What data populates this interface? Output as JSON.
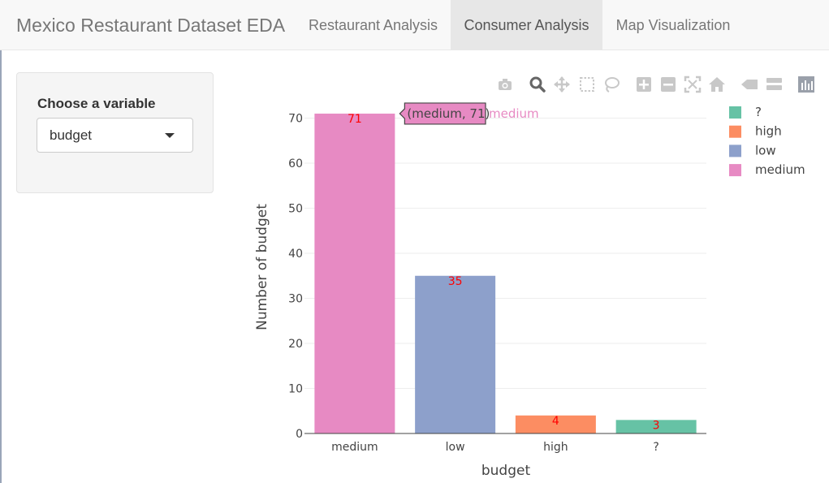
{
  "navbar": {
    "brand": "Mexico Restaurant Dataset EDA",
    "tabs": [
      {
        "label": "Restaurant Analysis",
        "active": false
      },
      {
        "label": "Consumer Analysis",
        "active": true
      },
      {
        "label": "Map Visualization",
        "active": false
      }
    ]
  },
  "sidebar": {
    "label": "Choose a variable",
    "select_value": "budget"
  },
  "modebar": {
    "icons": [
      "camera-icon",
      "zoom-icon",
      "pan-icon",
      "box-select-icon",
      "lasso-icon",
      "zoom-in-icon",
      "zoom-out-icon",
      "autoscale-icon",
      "reset-axes-icon",
      "spike-lines-icon",
      "compare-hover-icon",
      "plotly-logo-icon"
    ]
  },
  "chart_data": {
    "type": "bar",
    "categories": [
      "medium",
      "low",
      "high",
      "?"
    ],
    "values": [
      71,
      35,
      4,
      3
    ],
    "data_labels": [
      "71",
      "35",
      "4",
      "3"
    ],
    "colors": {
      "medium": "#e78ac3",
      "low": "#8da0cb",
      "high": "#fc8d62",
      "?": "#66c2a5"
    },
    "xlabel": "budget",
    "ylabel": "Number of budget",
    "ylim": [
      0,
      71
    ],
    "yticks": [
      0,
      10,
      20,
      30,
      40,
      50,
      60,
      70
    ],
    "grid": true,
    "legend": {
      "position": "top-right",
      "entries": [
        "?",
        "high",
        "low",
        "medium"
      ]
    },
    "tooltip": {
      "text": "(medium, 71)",
      "name": "medium"
    }
  }
}
